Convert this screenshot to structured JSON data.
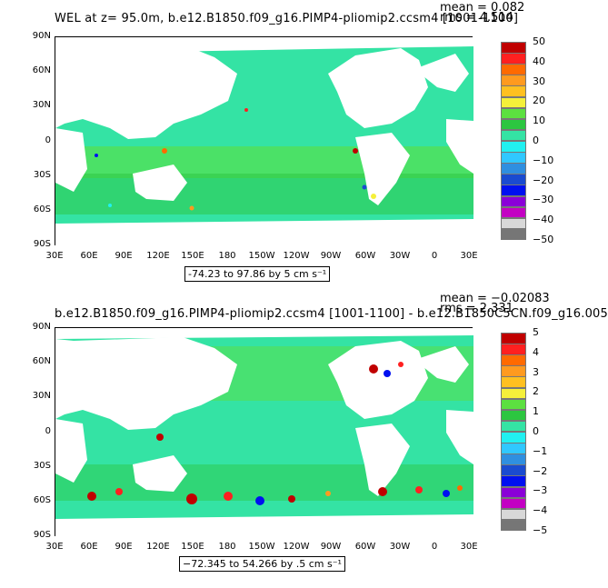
{
  "panels": [
    {
      "title": "WEL at z=   95.0m, b.e12.B1850.f09_g16.PIMP4-pliomip2.ccsm4 [1001-1100]",
      "stats_mean": "mean = 0.082",
      "stats_rms": "rms = 4.514",
      "range_text": "-74.23 to 97.86 by 5 cm s⁻¹",
      "colorbar_labels": [
        "50",
        "40",
        "30",
        "20",
        "10",
        "0",
        "−10",
        "−20",
        "−30",
        "−40",
        "−50"
      ]
    },
    {
      "title": "b.e12.B1850.f09_g16.PIMP4-pliomip2.ccsm4 [1001-1100] - b.e12.B1850C5CN.f09_g16.005",
      "stats_mean": "mean = −0.02083",
      "stats_rms": "rms = 2.331",
      "range_text": "−72.345 to 54.266 by .5 cm s⁻¹",
      "colorbar_labels": [
        "5",
        "4",
        "3",
        "2",
        "1",
        "0",
        "−1",
        "−2",
        "−3",
        "−4",
        "−5"
      ]
    }
  ],
  "lat_labels": [
    "90N",
    "60N",
    "30N",
    "0",
    "30S",
    "60S",
    "90S"
  ],
  "lon_labels": [
    "30E",
    "60E",
    "90E",
    "120E",
    "150E",
    "180",
    "150W",
    "120W",
    "90W",
    "60W",
    "30W",
    "0",
    "30E"
  ],
  "colorbar_colors": [
    "#c00000",
    "#ff2020",
    "#ff6a00",
    "#ff9a1f",
    "#ffc020",
    "#f5f03a",
    "#5ce040",
    "#2cc640",
    "#34e3a4",
    "#21f0f0",
    "#30c8ff",
    "#2f8fe0",
    "#1a4bd0",
    "#0010f0",
    "#8a00d8",
    "#c300c3",
    "#d8d8d8",
    "#767676"
  ],
  "colorbar_tick_count": 11
}
